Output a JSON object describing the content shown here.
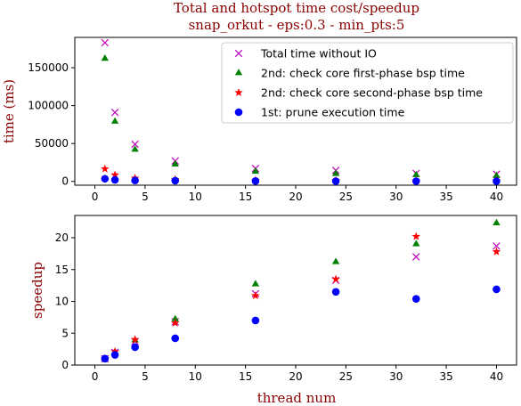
{
  "chart_data": [
    {
      "type": "scatter",
      "title": "Total and hotspot time cost/speedup",
      "subtitle": "snap_orkut - eps:0.3 - min_pts:5",
      "xlabel": "",
      "ylabel": "time (ms)",
      "xlim": [
        -2,
        42
      ],
      "ylim": [
        -5000,
        190000
      ],
      "xticks": [
        0,
        5,
        10,
        15,
        20,
        25,
        30,
        35,
        40
      ],
      "yticks": [
        0,
        50000,
        100000,
        150000
      ],
      "legend": "top-right",
      "grid": false,
      "series": [
        {
          "name": "Total time without IO",
          "marker": "x",
          "color": "#bf00bf",
          "x": [
            1,
            2,
            4,
            8,
            16,
            24,
            32,
            40
          ],
          "y": [
            183000,
            91000,
            49000,
            27000,
            17000,
            14500,
            10500,
            9500
          ]
        },
        {
          "name": "2nd: check core first-phase bsp time",
          "marker": "triangle",
          "color": "#008000",
          "x": [
            1,
            2,
            4,
            8,
            16,
            24,
            32,
            40
          ],
          "y": [
            162000,
            79000,
            42000,
            22500,
            13000,
            10000,
            8500,
            7300
          ]
        },
        {
          "name": "2nd: check core second-phase bsp time",
          "marker": "star",
          "color": "#ff0000",
          "x": [
            1,
            2,
            4,
            8,
            16,
            24,
            32,
            40
          ],
          "y": [
            16500,
            8500,
            4300,
            2500,
            1500,
            1200,
            800,
            900
          ]
        },
        {
          "name": "1st: prune execution time",
          "marker": "circle",
          "color": "#0000ff",
          "x": [
            1,
            2,
            4,
            8,
            16,
            24,
            32,
            40
          ],
          "y": [
            3500,
            2000,
            1200,
            900,
            500,
            300,
            300,
            300
          ]
        }
      ]
    },
    {
      "type": "scatter",
      "title": "",
      "xlabel": "thread num",
      "ylabel": "speedup",
      "xlim": [
        -2,
        42
      ],
      "ylim": [
        0,
        23.5
      ],
      "xticks": [
        0,
        5,
        10,
        15,
        20,
        25,
        30,
        35,
        40
      ],
      "yticks": [
        0,
        5,
        10,
        15,
        20
      ],
      "grid": false,
      "series": [
        {
          "marker": "x",
          "color": "#bf00bf",
          "x": [
            1,
            2,
            4,
            8,
            16,
            24,
            32,
            40
          ],
          "y": [
            1,
            2.0,
            3.7,
            6.8,
            11.2,
            13.3,
            17.0,
            18.7
          ]
        },
        {
          "marker": "triangle",
          "color": "#008000",
          "x": [
            1,
            2,
            4,
            8,
            16,
            24,
            32,
            40
          ],
          "y": [
            1,
            2.05,
            3.9,
            7.2,
            12.7,
            16.2,
            19.0,
            22.3
          ]
        },
        {
          "marker": "star",
          "color": "#ff0000",
          "x": [
            1,
            2,
            4,
            8,
            16,
            24,
            32,
            40
          ],
          "y": [
            1,
            2.1,
            4.0,
            6.6,
            10.9,
            13.5,
            20.2,
            17.8
          ]
        },
        {
          "marker": "circle",
          "color": "#0000ff",
          "x": [
            1,
            2,
            4,
            8,
            16,
            24,
            32,
            40
          ],
          "y": [
            1,
            1.6,
            2.8,
            4.2,
            7.0,
            11.5,
            10.4,
            11.9
          ]
        }
      ]
    }
  ]
}
